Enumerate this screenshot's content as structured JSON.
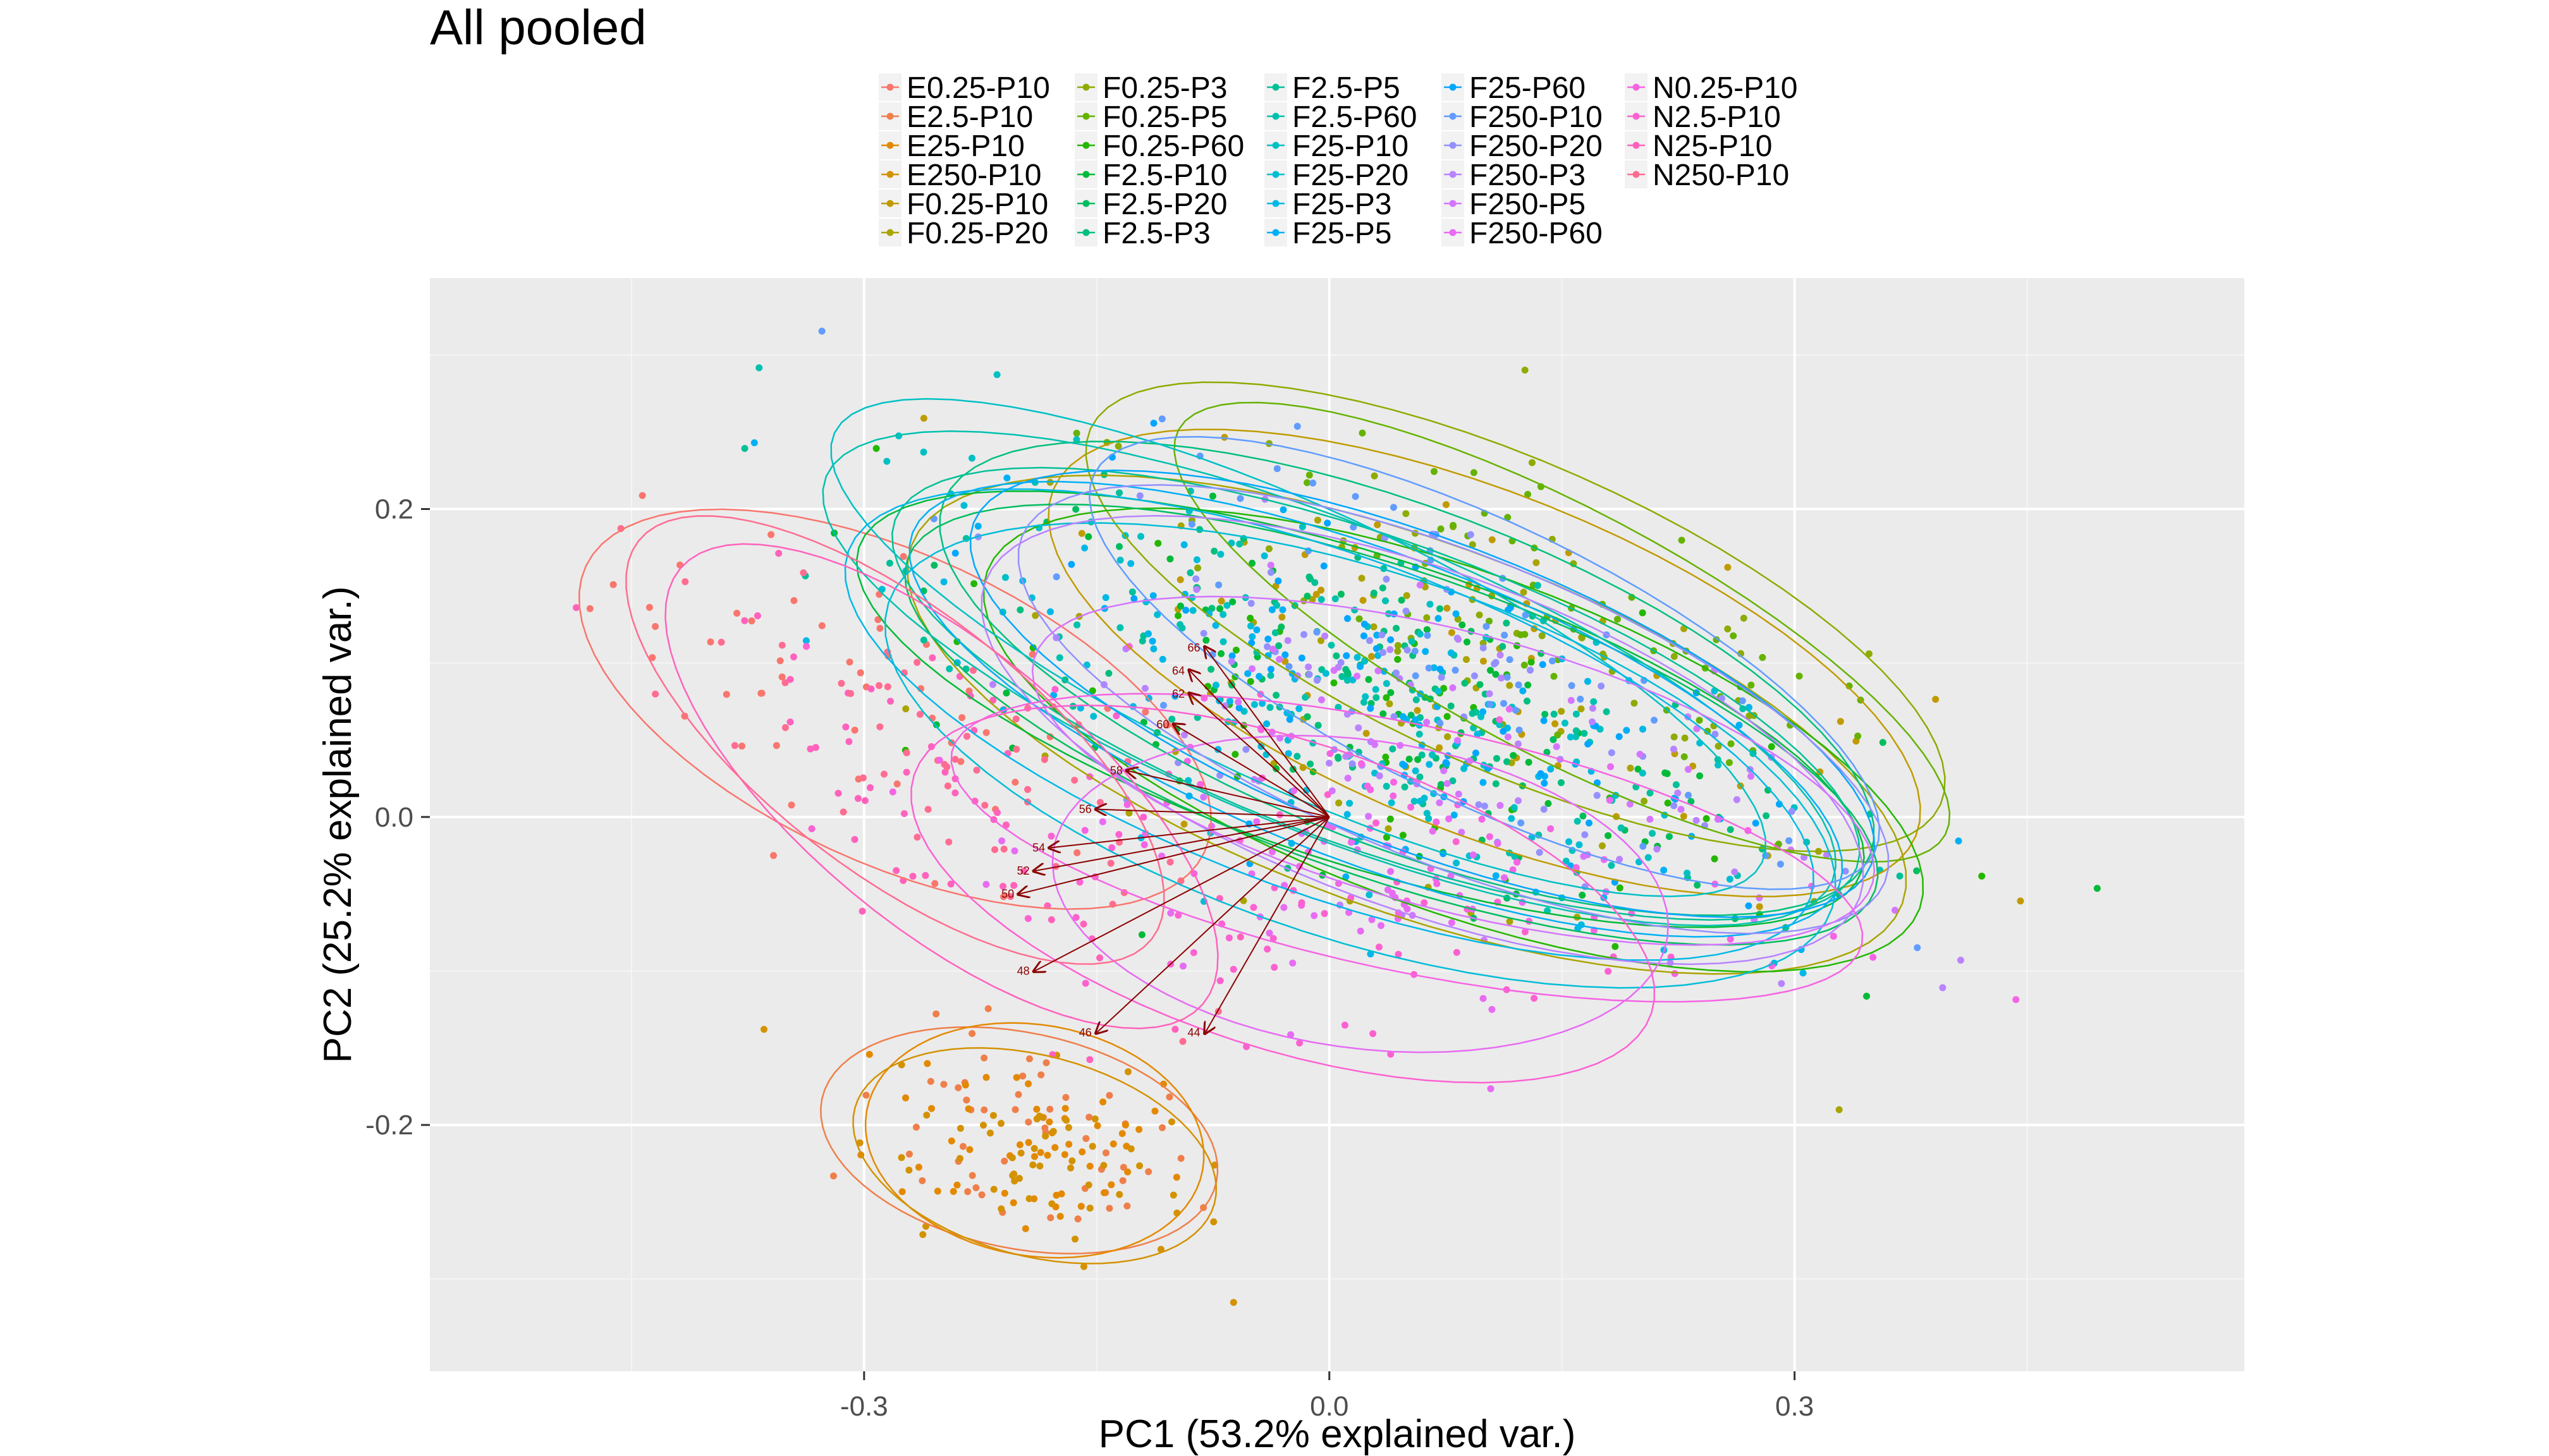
{
  "chart_data": {
    "type": "scatter",
    "title": "All pooled",
    "xlabel": "PC1 (53.2% explained var.)",
    "ylabel": "PC2 (25.2% explained var.)",
    "xlim": [
      -0.58,
      0.59
    ],
    "ylim": [
      -0.36,
      0.35
    ],
    "x_ticks": [
      -0.3,
      0.0,
      0.3
    ],
    "x_tick_labels": [
      "-0.3",
      "0.0",
      "0.3"
    ],
    "y_ticks": [
      -0.2,
      0.0,
      0.2
    ],
    "y_tick_labels": [
      "-0.2",
      "0.0",
      "0.2"
    ],
    "grid": true,
    "legend_position": "top",
    "panel_background": "#ebebeb",
    "series": [
      {
        "name": "E0.25-P10",
        "color": "#F8766D",
        "cx": -0.28,
        "cy": 0.07,
        "rx": 0.22,
        "ry": 0.1,
        "angle": -25
      },
      {
        "name": "E2.5-P10",
        "color": "#EF7F4A",
        "cx": -0.2,
        "cy": -0.21,
        "rx": 0.13,
        "ry": 0.07,
        "angle": -12
      },
      {
        "name": "E25-P10",
        "color": "#E38900",
        "cx": -0.19,
        "cy": -0.21,
        "rx": 0.11,
        "ry": 0.075,
        "angle": -10
      },
      {
        "name": "E250-P10",
        "color": "#D39200",
        "cx": -0.19,
        "cy": -0.22,
        "rx": 0.12,
        "ry": 0.065,
        "angle": -15
      },
      {
        "name": "F0.25-P10",
        "color": "#C09B00",
        "cx": 0.1,
        "cy": 0.1,
        "rx": 0.3,
        "ry": 0.11,
        "angle": -22
      },
      {
        "name": "F0.25-P20",
        "color": "#A9A400",
        "cx": 0.05,
        "cy": 0.06,
        "rx": 0.34,
        "ry": 0.12,
        "angle": -20
      },
      {
        "name": "F0.25-P3",
        "color": "#8DAB00",
        "cx": 0.12,
        "cy": 0.13,
        "rx": 0.3,
        "ry": 0.1,
        "angle": -24
      },
      {
        "name": "F0.25-P5",
        "color": "#66B200",
        "cx": 0.15,
        "cy": 0.12,
        "rx": 0.28,
        "ry": 0.08,
        "angle": -28
      },
      {
        "name": "F0.25-P60",
        "color": "#24B700",
        "cx": 0.08,
        "cy": 0.05,
        "rx": 0.32,
        "ry": 0.11,
        "angle": -20
      },
      {
        "name": "F2.5-P10",
        "color": "#00BA38",
        "cx": 0.02,
        "cy": 0.07,
        "rx": 0.34,
        "ry": 0.1,
        "angle": -18
      },
      {
        "name": "F2.5-P20",
        "color": "#00BD5F",
        "cx": 0.04,
        "cy": 0.06,
        "rx": 0.33,
        "ry": 0.1,
        "angle": -19
      },
      {
        "name": "F2.5-P3",
        "color": "#00BF7D",
        "cx": 0.05,
        "cy": 0.09,
        "rx": 0.32,
        "ry": 0.11,
        "angle": -21
      },
      {
        "name": "F2.5-P5",
        "color": "#00C097",
        "cx": 0.03,
        "cy": 0.08,
        "rx": 0.33,
        "ry": 0.1,
        "angle": -20
      },
      {
        "name": "F2.5-P60",
        "color": "#00C1AE",
        "cx": 0.0,
        "cy": 0.09,
        "rx": 0.35,
        "ry": 0.1,
        "angle": -22
      },
      {
        "name": "F25-P10",
        "color": "#00C0C4",
        "cx": -0.02,
        "cy": 0.11,
        "rx": 0.33,
        "ry": 0.09,
        "angle": -25
      },
      {
        "name": "F25-P20",
        "color": "#00BDD6",
        "cx": 0.02,
        "cy": 0.04,
        "rx": 0.32,
        "ry": 0.12,
        "angle": -18
      },
      {
        "name": "F25-P3",
        "color": "#00B8E7",
        "cx": 0.0,
        "cy": 0.06,
        "rx": 0.33,
        "ry": 0.11,
        "angle": -20
      },
      {
        "name": "F25-P5",
        "color": "#00B0F5",
        "cx": 0.03,
        "cy": 0.07,
        "rx": 0.32,
        "ry": 0.1,
        "angle": -21
      },
      {
        "name": "F25-P60",
        "color": "#00A6FF",
        "cx": 0.06,
        "cy": 0.08,
        "rx": 0.31,
        "ry": 0.1,
        "angle": -21
      },
      {
        "name": "F250-P10",
        "color": "#619CFF",
        "cx": 0.1,
        "cy": 0.1,
        "rx": 0.28,
        "ry": 0.09,
        "angle": -26
      },
      {
        "name": "F250-P20",
        "color": "#9590FF",
        "cx": 0.08,
        "cy": 0.07,
        "rx": 0.3,
        "ry": 0.1,
        "angle": -22
      },
      {
        "name": "F250-P3",
        "color": "#B983FF",
        "cx": 0.06,
        "cy": 0.05,
        "rx": 0.3,
        "ry": 0.11,
        "angle": -20
      },
      {
        "name": "F250-P5",
        "color": "#D575FE",
        "cx": 0.08,
        "cy": 0.03,
        "rx": 0.28,
        "ry": 0.09,
        "angle": -15
      },
      {
        "name": "F250-P60",
        "color": "#E76BF3",
        "cx": 0.02,
        "cy": -0.05,
        "rx": 0.2,
        "ry": 0.1,
        "angle": -8
      },
      {
        "name": "N0.25-P10",
        "color": "#F564E3",
        "cx": 0.05,
        "cy": -0.02,
        "rx": 0.3,
        "ry": 0.08,
        "angle": -12
      },
      {
        "name": "N2.5-P10",
        "color": "#FD61D1",
        "cx": -0.03,
        "cy": -0.05,
        "rx": 0.25,
        "ry": 0.1,
        "angle": -18
      },
      {
        "name": "N25-P10",
        "color": "#FF62BC",
        "cx": -0.25,
        "cy": 0.02,
        "rx": 0.22,
        "ry": 0.09,
        "angle": -40
      },
      {
        "name": "N250-P10",
        "color": "#FF6C91",
        "cx": -0.28,
        "cy": 0.05,
        "rx": 0.21,
        "ry": 0.085,
        "angle": -38
      }
    ],
    "loadings": {
      "color": "#8b0000",
      "labels": [
        "44",
        "46",
        "48",
        "50",
        "52",
        "54",
        "56",
        "58",
        "60",
        "62",
        "64",
        "66"
      ],
      "x": [
        -0.08,
        -0.15,
        -0.19,
        -0.2,
        -0.19,
        -0.18,
        -0.15,
        -0.13,
        -0.1,
        -0.09,
        -0.09,
        -0.08
      ],
      "y": [
        -0.14,
        -0.14,
        -0.1,
        -0.05,
        -0.035,
        -0.02,
        0.005,
        0.03,
        0.06,
        0.08,
        0.095,
        0.11
      ]
    },
    "reference_style": "all-series-ellipses"
  }
}
